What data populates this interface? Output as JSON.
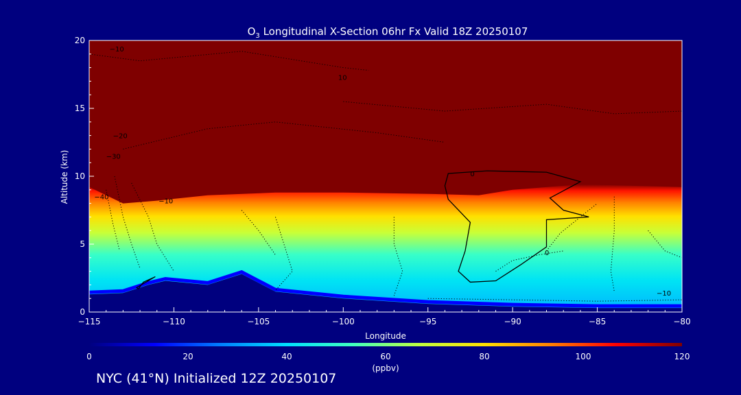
{
  "chart_data": {
    "type": "heatmap",
    "title_prefix": "O",
    "title_subscript": "3",
    "title_suffix": " Longitudinal X-Section 06hr  Fx Valid 18Z 20250107",
    "xlabel": "Longitude",
    "ylabel": "Altitude (km)",
    "xlim": [
      -115,
      -80
    ],
    "ylim": [
      0,
      20
    ],
    "x_ticks": [
      -115,
      -110,
      -105,
      -100,
      -95,
      -90,
      -85,
      -80
    ],
    "x_tick_labels": [
      "−115",
      "−110",
      "−105",
      "−100",
      "−95",
      "−90",
      "−85",
      "−80"
    ],
    "y_ticks": [
      0,
      5,
      10,
      15,
      20
    ],
    "y_tick_labels": [
      "0",
      "5",
      "10",
      "15",
      "20"
    ],
    "variable": "O3",
    "units": "(ppbv)",
    "colorbar": {
      "range": [
        0,
        120
      ],
      "ticks": [
        0,
        20,
        40,
        60,
        80,
        100,
        120
      ],
      "tick_labels": [
        "0",
        "20",
        "40",
        "60",
        "80",
        "100",
        "120"
      ],
      "colors": [
        "#00007f",
        "#0000ff",
        "#0080ff",
        "#00e0ff",
        "#40ffc0",
        "#c0ff40",
        "#ffe000",
        "#ff8000",
        "#ff0000",
        "#7f0000"
      ]
    },
    "terrain_km": [
      {
        "lon": -115,
        "alt": 1.3
      },
      {
        "lon": -113,
        "alt": 1.4
      },
      {
        "lon": -111.5,
        "alt": 2.0
      },
      {
        "lon": -110.5,
        "alt": 2.3
      },
      {
        "lon": -108,
        "alt": 2.0
      },
      {
        "lon": -106,
        "alt": 2.8
      },
      {
        "lon": -104,
        "alt": 1.5
      },
      {
        "lon": -100,
        "alt": 1.0
      },
      {
        "lon": -95,
        "alt": 0.6
      },
      {
        "lon": -90,
        "alt": 0.4
      },
      {
        "lon": -85,
        "alt": 0.3
      },
      {
        "lon": -80,
        "alt": 0.3
      }
    ],
    "tropopause_km": [
      {
        "lon": -115,
        "alt": 9.2
      },
      {
        "lon": -113,
        "alt": 8.0
      },
      {
        "lon": -111,
        "alt": 8.2
      },
      {
        "lon": -108,
        "alt": 8.6
      },
      {
        "lon": -104,
        "alt": 8.8
      },
      {
        "lon": -100,
        "alt": 8.8
      },
      {
        "lon": -95,
        "alt": 8.7
      },
      {
        "lon": -92,
        "alt": 8.6
      },
      {
        "lon": -90,
        "alt": 9.0
      },
      {
        "lon": -86,
        "alt": 9.4
      },
      {
        "lon": -80,
        "alt": 9.2
      }
    ],
    "contour_labels": [
      "−10",
      "10",
      "−20",
      "−30",
      "−40",
      "−10",
      "0",
      "0",
      "−10"
    ]
  },
  "caption": "NYC (41°N) Initialized 12Z 20250107"
}
